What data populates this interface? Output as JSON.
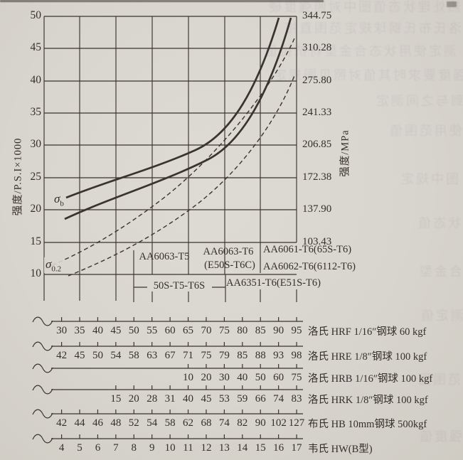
{
  "colors": {
    "paper": "#d8d5ce",
    "ink": "#352f2a"
  },
  "chart_data": {
    "type": "line",
    "title": "",
    "grid": true,
    "left_axis": {
      "label": "强度/P.S.I×1000",
      "ticks": [
        "50",
        "45",
        "40",
        "35",
        "30",
        "25",
        "20",
        "15",
        "10"
      ]
    },
    "right_axis": {
      "label": "强度/MPa",
      "ticks": [
        "344.75",
        "310.28",
        "275.80",
        "241.33",
        "206.85",
        "172.38",
        "137.90",
        "103.43"
      ]
    },
    "x_unit": "HRF",
    "series": [
      {
        "name": "σb",
        "label_base": "σ",
        "label_sub": "b",
        "line_style": "solid",
        "band_upper_points_hrf_ksi": [
          [
            32,
            22
          ],
          [
            45,
            26
          ],
          [
            55,
            28.5
          ],
          [
            65,
            31.5
          ],
          [
            75,
            36
          ],
          [
            85,
            43
          ],
          [
            92,
            50
          ]
        ],
        "band_lower_points_hrf_ksi": [
          [
            32,
            19
          ],
          [
            45,
            23
          ],
          [
            55,
            25.5
          ],
          [
            65,
            28.5
          ],
          [
            75,
            33
          ],
          [
            85,
            39
          ],
          [
            95,
            50
          ]
        ]
      },
      {
        "name": "σ0.2",
        "label_base": "σ",
        "label_sub": "0.2",
        "line_style": "dashed",
        "band_upper_points_hrf_ksi": [
          [
            26,
            11
          ],
          [
            35,
            13
          ],
          [
            45,
            15.5
          ],
          [
            55,
            18.5
          ],
          [
            65,
            22.5
          ],
          [
            75,
            27.5
          ],
          [
            85,
            34.5
          ],
          [
            95,
            46.5
          ]
        ],
        "band_lower_points_hrf_ksi": [
          [
            33,
            10
          ],
          [
            45,
            12
          ],
          [
            55,
            14.5
          ],
          [
            65,
            17.5
          ],
          [
            75,
            21.5
          ],
          [
            85,
            26.5
          ],
          [
            95,
            41.5
          ]
        ]
      }
    ],
    "alloy_annotations": [
      {
        "label": "AA6063-T5"
      },
      {
        "label": "AA6063-T6",
        "label2": "(E50S-T6C)"
      },
      {
        "label": "AA6061-T6(65S-T6)"
      },
      {
        "label": "AA6062-T6(6112-T6)"
      },
      {
        "label": "AA6351-T6(E51S-T6)"
      },
      {
        "label": "50S-T5-T6S"
      }
    ],
    "hardness_scales": [
      {
        "id": "hrf",
        "label": "洛氏 HRF 1/16″钢球  60 kgf",
        "values": [
          "30",
          "35",
          "40",
          "45",
          "50",
          "55",
          "60",
          "65",
          "70",
          "75",
          "80",
          "85",
          "90",
          "95"
        ],
        "start_index": 0
      },
      {
        "id": "hre",
        "label": "洛氏 HRE 1/8″钢球  100 kgf",
        "values": [
          "42",
          "45",
          "50",
          "54",
          "58",
          "63",
          "67",
          "71",
          "75",
          "79",
          "85",
          "88",
          "93",
          "98"
        ],
        "start_index": 0
      },
      {
        "id": "hrb",
        "label": "洛氏 HRB 1/16″钢球  100 kgf",
        "values": [
          "10",
          "20",
          "30",
          "40",
          "50",
          "60",
          "75"
        ],
        "start_index": 7
      },
      {
        "id": "hrk",
        "label": "洛氏 HRK 1/8″钢球  100 kgf",
        "values": [
          "15",
          "20",
          "28",
          "31",
          "40",
          "45",
          "53",
          "59",
          "66",
          "74",
          "83"
        ],
        "start_index": 3
      },
      {
        "id": "hb",
        "label": "布氏 HB 10mm钢球 500kgf",
        "values": [
          "42",
          "44",
          "46",
          "48",
          "52",
          "54",
          "58",
          "62",
          "68",
          "74",
          "82",
          "90",
          "102",
          "127"
        ],
        "start_index": 0
      },
      {
        "id": "hw",
        "label": "韦氏 HW(B型)",
        "values": [
          "4",
          "5",
          "6",
          "7",
          "8",
          "9",
          "10",
          "11",
          "12",
          "13",
          "14",
          "15",
          "16",
          "17"
        ],
        "start_index": 0
      }
    ]
  },
  "decor": {
    "bleed_texts": [
      "热处理状态值图中对照强度硬",
      "度洛氏布氏钢球规定范围直接",
      "测定使用状态合金型材抗拉值",
      "强度要求时其值对照见图规定",
      "到与之间测定",
      "使用范围值",
      "图中规定",
      "状态值",
      "合金型",
      "测定值",
      "范围图",
      "强度值"
    ]
  }
}
